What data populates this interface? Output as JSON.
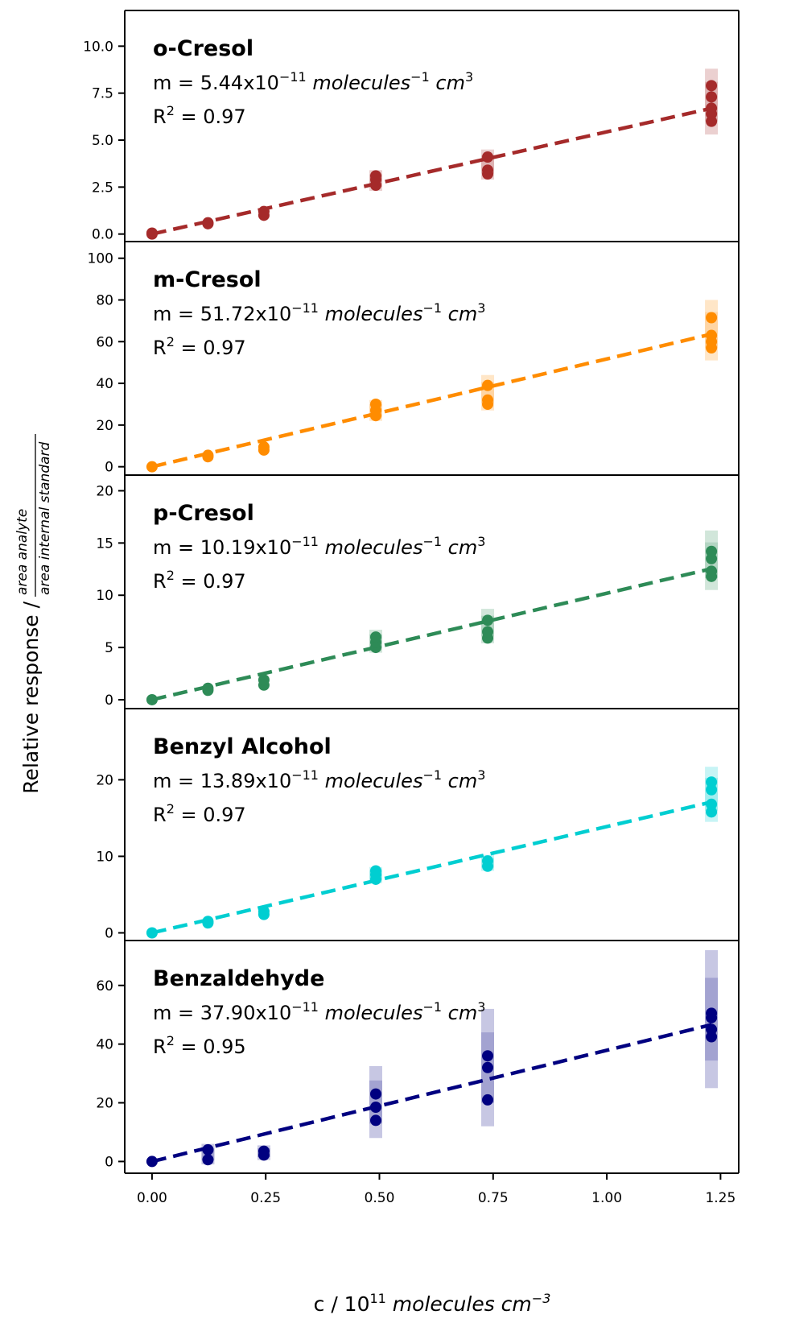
{
  "chart_data": {
    "type": "scatter",
    "layout": "5 vertically stacked panels sharing x-axis",
    "xlabel": {
      "prefix": "c / 10",
      "exp": "11",
      "unit": " molecules cm",
      "unit_exp": "−3"
    },
    "ylabel": {
      "text": "Relative response / ",
      "numerator": "area analyte",
      "denominator": "area internal standard"
    },
    "xlim": [
      -0.06,
      1.29
    ],
    "xticks": [
      0.0,
      0.25,
      0.5,
      0.75,
      1.0,
      1.25
    ],
    "xtick_labels": [
      "0.00",
      "0.25",
      "0.50",
      "0.75",
      "1.00",
      "1.25"
    ],
    "x_levels": [
      0.0,
      0.123,
      0.246,
      0.492,
      0.738,
      1.23
    ],
    "fit_style": "dashed line",
    "panels": [
      {
        "name": "o-Cresol",
        "color": "#a52a2a",
        "slope_text": "5.44",
        "r2_text": "0.97",
        "m_prefix": "m = ",
        "m_suffix": "x10",
        "m_exp": "−11",
        "unit": " molecules",
        "unit_exp": "−1",
        "unit2": " cm",
        "unit2_exp": "3",
        "r2_prefix": "R",
        "r2_exp": "2",
        "r2_eq": " = ",
        "ylim": [
          -0.4,
          11.9
        ],
        "yticks": [
          0.0,
          2.5,
          5.0,
          7.5,
          10.0
        ],
        "ytick_labels": [
          "0.0",
          "2.5",
          "5.0",
          "7.5",
          "10.0"
        ],
        "slope": 5.44,
        "points": [
          [
            0.0,
            0.0
          ],
          [
            0.0,
            0.05
          ],
          [
            0.123,
            0.55
          ],
          [
            0.123,
            0.6
          ],
          [
            0.246,
            1.0
          ],
          [
            0.246,
            1.2
          ],
          [
            0.492,
            2.6
          ],
          [
            0.492,
            2.9
          ],
          [
            0.492,
            3.1
          ],
          [
            0.738,
            3.2
          ],
          [
            0.738,
            3.4
          ],
          [
            0.738,
            4.1
          ],
          [
            1.23,
            6.0
          ],
          [
            1.23,
            6.4
          ],
          [
            1.23,
            6.7
          ],
          [
            1.23,
            7.3
          ],
          [
            1.23,
            7.9
          ]
        ],
        "error_bands": [
          {
            "x": 0.492,
            "low": 2.3,
            "high": 3.4
          },
          {
            "x": 0.738,
            "low": 2.9,
            "high": 4.5
          },
          {
            "x": 1.23,
            "low": 5.3,
            "high": 8.8
          }
        ]
      },
      {
        "name": "m-Cresol",
        "color": "#ff8c00",
        "slope_text": "51.72",
        "r2_text": "0.97",
        "m_prefix": "m = ",
        "m_suffix": "x10",
        "m_exp": "−11",
        "unit": " molecules",
        "unit_exp": "−1",
        "unit2": " cm",
        "unit2_exp": "3",
        "r2_prefix": "R",
        "r2_exp": "2",
        "r2_eq": " = ",
        "ylim": [
          -4,
          108
        ],
        "yticks": [
          0,
          20,
          40,
          60,
          80,
          100
        ],
        "ytick_labels": [
          "0",
          "20",
          "40",
          "60",
          "80",
          "100"
        ],
        "slope": 51.72,
        "points": [
          [
            0.0,
            0.0
          ],
          [
            0.123,
            4.8
          ],
          [
            0.123,
            5.5
          ],
          [
            0.246,
            8.0
          ],
          [
            0.246,
            9.5
          ],
          [
            0.492,
            24.5
          ],
          [
            0.492,
            27.0
          ],
          [
            0.492,
            30.0
          ],
          [
            0.738,
            30.0
          ],
          [
            0.738,
            32.0
          ],
          [
            0.738,
            39.0
          ],
          [
            1.23,
            57.0
          ],
          [
            1.23,
            60.0
          ],
          [
            1.23,
            63.0
          ],
          [
            1.23,
            71.5
          ]
        ],
        "error_bands": [
          {
            "x": 0.492,
            "low": 22.0,
            "high": 32.0
          },
          {
            "x": 0.738,
            "low": 27.0,
            "high": 44.0
          },
          {
            "x": 1.23,
            "low": 51.0,
            "high": 80.0
          }
        ]
      },
      {
        "name": "p-Cresol",
        "color": "#2e8b57",
        "slope_text": "10.19",
        "r2_text": "0.97",
        "m_prefix": "m = ",
        "m_suffix": "x10",
        "m_exp": "−11",
        "unit": " molecules",
        "unit_exp": "−1",
        "unit2": " cm",
        "unit2_exp": "3",
        "r2_prefix": "R",
        "r2_exp": "2",
        "r2_eq": " = ",
        "ylim": [
          -0.85,
          21.5
        ],
        "yticks": [
          0,
          5,
          10,
          15,
          20
        ],
        "ytick_labels": [
          "0",
          "5",
          "10",
          "15",
          "20"
        ],
        "slope": 10.19,
        "points": [
          [
            0.0,
            0.0
          ],
          [
            0.123,
            0.9
          ],
          [
            0.123,
            1.1
          ],
          [
            0.246,
            1.4
          ],
          [
            0.246,
            1.9
          ],
          [
            0.492,
            5.0
          ],
          [
            0.492,
            5.5
          ],
          [
            0.492,
            6.0
          ],
          [
            0.738,
            5.9
          ],
          [
            0.738,
            6.5
          ],
          [
            0.738,
            7.6
          ],
          [
            1.23,
            11.8
          ],
          [
            1.23,
            12.3
          ],
          [
            1.23,
            13.5
          ],
          [
            1.23,
            14.2
          ]
        ],
        "error_bands": [
          {
            "x": 0.492,
            "low": 4.5,
            "high": 6.7
          },
          {
            "x": 0.738,
            "low": 5.4,
            "high": 8.7
          },
          {
            "x": 1.23,
            "low": 10.5,
            "high": 16.2
          }
        ]
      },
      {
        "name": "Benzyl Alcohol",
        "color": "#00ced1",
        "slope_text": "13.89",
        "r2_text": "0.97",
        "m_prefix": "m = ",
        "m_suffix": "x10",
        "m_exp": "−11",
        "unit": " molecules",
        "unit_exp": "−1",
        "unit2": " cm",
        "unit2_exp": "3",
        "r2_prefix": "R",
        "r2_exp": "2",
        "r2_eq": " = ",
        "ylim": [
          -1.0,
          29.3
        ],
        "yticks": [
          0,
          10,
          20
        ],
        "ytick_labels": [
          "0",
          "10",
          "20"
        ],
        "slope": 13.89,
        "points": [
          [
            0.0,
            0.0
          ],
          [
            0.123,
            1.3
          ],
          [
            0.123,
            1.5
          ],
          [
            0.246,
            2.4
          ],
          [
            0.246,
            2.8
          ],
          [
            0.492,
            7.0
          ],
          [
            0.492,
            7.6
          ],
          [
            0.492,
            8.1
          ],
          [
            0.738,
            8.7
          ],
          [
            0.738,
            9.4
          ],
          [
            1.23,
            15.8
          ],
          [
            1.23,
            16.8
          ],
          [
            1.23,
            18.7
          ],
          [
            1.23,
            19.7
          ]
        ],
        "error_bands": [
          {
            "x": 0.492,
            "low": 6.5,
            "high": 8.6
          },
          {
            "x": 0.738,
            "low": 8.1,
            "high": 10.2
          },
          {
            "x": 1.23,
            "low": 14.5,
            "high": 21.7
          }
        ]
      },
      {
        "name": "Benzaldehyde",
        "color": "#000080",
        "slope_text": "37.90",
        "r2_text": "0.95",
        "m_prefix": "m = ",
        "m_suffix": "x10",
        "m_exp": "−11",
        "unit": " molecules",
        "unit_exp": "−1",
        "unit2": " cm",
        "unit2_exp": "3",
        "r2_prefix": "R",
        "r2_exp": "2",
        "r2_eq": " = ",
        "ylim": [
          -4,
          75.3
        ],
        "yticks": [
          0,
          20,
          40,
          60
        ],
        "ytick_labels": [
          "0",
          "20",
          "40",
          "60"
        ],
        "slope": 37.9,
        "points": [
          [
            0.0,
            0.0
          ],
          [
            0.123,
            0.6
          ],
          [
            0.123,
            4.0
          ],
          [
            0.246,
            2.2
          ],
          [
            0.246,
            3.5
          ],
          [
            0.492,
            14.0
          ],
          [
            0.492,
            18.5
          ],
          [
            0.492,
            23.0
          ],
          [
            0.738,
            21.0
          ],
          [
            0.738,
            32.0
          ],
          [
            0.738,
            36.0
          ],
          [
            1.23,
            42.5
          ],
          [
            1.23,
            45.0
          ],
          [
            1.23,
            49.0
          ],
          [
            1.23,
            50.5
          ]
        ],
        "error_bands": [
          {
            "x": 0.123,
            "low": -1.0,
            "high": 6.0
          },
          {
            "x": 0.246,
            "low": 0.5,
            "high": 5.5
          },
          {
            "x": 0.492,
            "low": 8.0,
            "high": 32.5
          },
          {
            "x": 0.738,
            "low": 12.0,
            "high": 52.0
          },
          {
            "x": 1.23,
            "low": 25.0,
            "high": 72.0
          }
        ]
      }
    ]
  }
}
